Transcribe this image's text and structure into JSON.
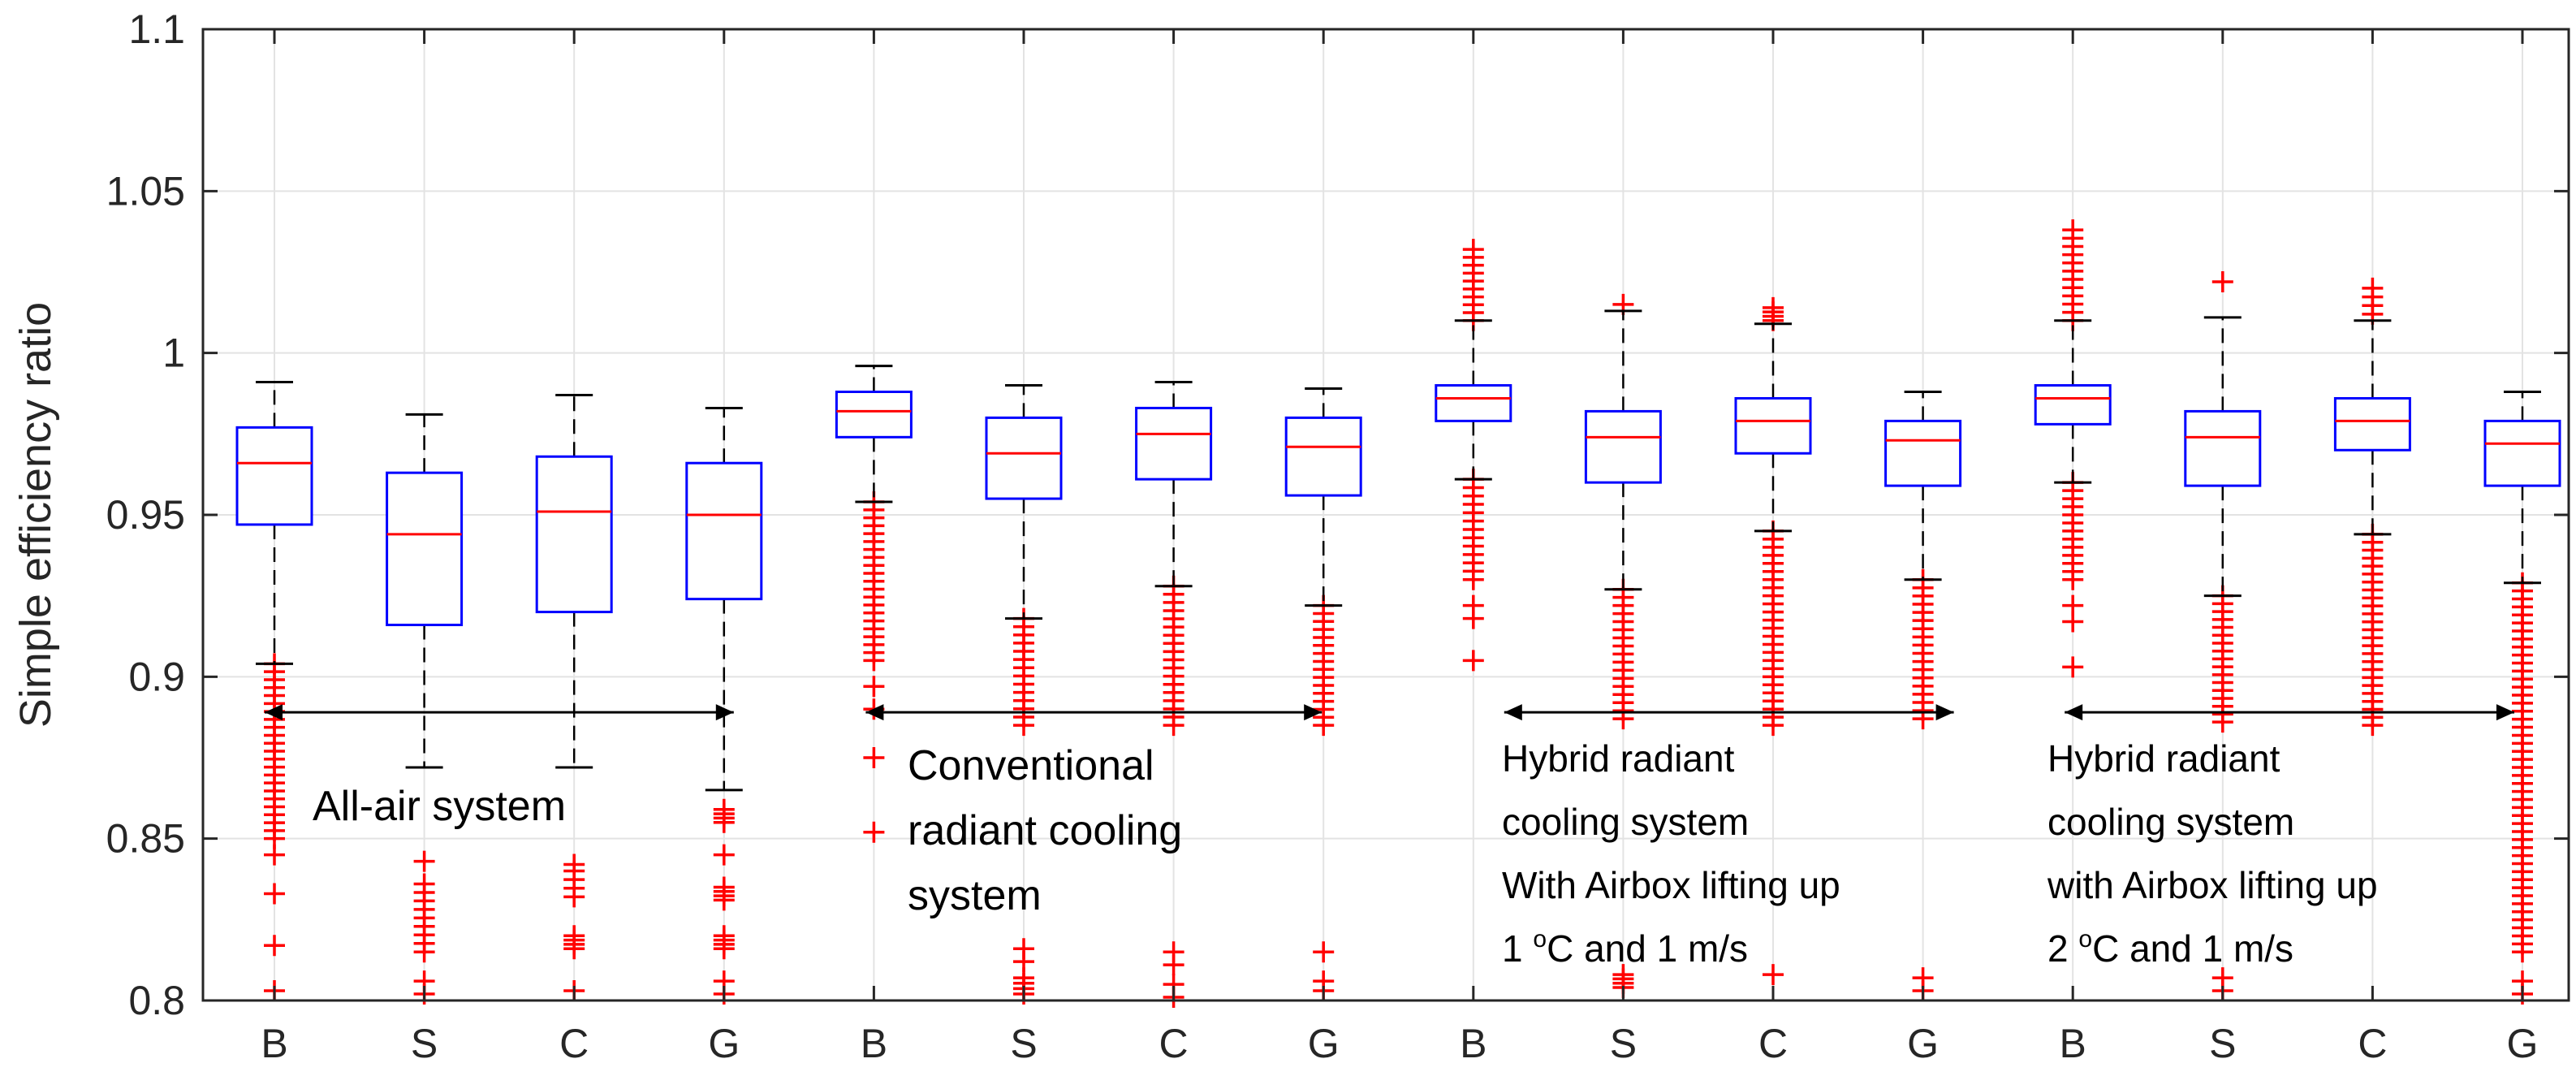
{
  "chart_data": {
    "type": "boxplot",
    "title": "",
    "xlabel": "",
    "ylabel": "Simple efficiency ratio",
    "ylim": [
      0.8,
      1.1
    ],
    "yticks": [
      "0.8",
      "0.85",
      "0.9",
      "0.95",
      "1",
      "1.05",
      "1.1"
    ],
    "grid": true,
    "categories": [
      "B",
      "S",
      "C",
      "G",
      "B",
      "S",
      "C",
      "G",
      "B",
      "S",
      "C",
      "G",
      "B",
      "S",
      "C",
      "G"
    ],
    "groups": [
      {
        "name": "All-air system",
        "lines": [
          "All-air system"
        ],
        "from": 0,
        "to": 3
      },
      {
        "name": "Conventional radiant cooling system",
        "lines": [
          "Conventional",
          "radiant cooling",
          "system"
        ],
        "from": 4,
        "to": 7
      },
      {
        "name": "Hybrid radiant cooling system With Airbox lifting up 1 °C and 1 m/s",
        "lines": [
          "Hybrid radiant",
          "cooling system",
          "With Airbox lifting up"
        ],
        "sup_line": {
          "pre": "1 ",
          "sup": "o",
          "post": "C and 1 m/s"
        },
        "from": 8,
        "to": 11
      },
      {
        "name": "Hybrid radiant cooling system with Airbox lifting up 2 °C and 1 m/s",
        "lines": [
          "Hybrid radiant",
          "cooling system",
          "with Airbox lifting up"
        ],
        "sup_line": {
          "pre": "2 ",
          "sup": "o",
          "post": "C and 1 m/s"
        },
        "from": 12,
        "to": 15
      }
    ],
    "boxes": [
      {
        "label": "B",
        "whisker_high": 0.991,
        "q3": 0.977,
        "median": 0.966,
        "q1": 0.947,
        "whisker_low": 0.904,
        "outlier_ranges": [
          [
            0.85,
            0.904
          ]
        ],
        "outliers": [
          0.845,
          0.833,
          0.817,
          0.803
        ]
      },
      {
        "label": "S",
        "whisker_high": 0.981,
        "q3": 0.963,
        "median": 0.944,
        "q1": 0.916,
        "whisker_low": 0.872,
        "outlier_ranges": [
          [
            0.815,
            0.836
          ]
        ],
        "outliers": [
          0.843,
          0.806,
          0.802
        ]
      },
      {
        "label": "C",
        "whisker_high": 0.987,
        "q3": 0.968,
        "median": 0.951,
        "q1": 0.92,
        "whisker_low": 0.872,
        "outlier_ranges": [
          [
            0.832,
            0.84
          ],
          [
            0.816,
            0.82
          ]
        ],
        "outliers": [
          0.842,
          0.803
        ]
      },
      {
        "label": "G",
        "whisker_high": 0.983,
        "q3": 0.966,
        "median": 0.95,
        "q1": 0.924,
        "whisker_low": 0.865,
        "outlier_ranges": [
          [
            0.855,
            0.859
          ],
          [
            0.831,
            0.835
          ],
          [
            0.816,
            0.82
          ]
        ],
        "outliers": [
          0.845,
          0.806,
          0.802
        ]
      },
      {
        "label": "B",
        "whisker_high": 0.996,
        "q3": 0.988,
        "median": 0.982,
        "q1": 0.974,
        "whisker_low": 0.954,
        "outlier_ranges": [
          [
            0.905,
            0.954
          ]
        ],
        "outliers": [
          0.897,
          0.89,
          0.875,
          0.852
        ]
      },
      {
        "label": "S",
        "whisker_high": 0.99,
        "q3": 0.98,
        "median": 0.969,
        "q1": 0.955,
        "whisker_low": 0.918,
        "outlier_ranges": [
          [
            0.885,
            0.918
          ],
          [
            0.802,
            0.807
          ]
        ],
        "outliers": [
          0.816,
          0.812
        ]
      },
      {
        "label": "C",
        "whisker_high": 0.991,
        "q3": 0.983,
        "median": 0.975,
        "q1": 0.961,
        "whisker_low": 0.928,
        "outlier_ranges": [
          [
            0.885,
            0.928
          ]
        ],
        "outliers": [
          0.815,
          0.811,
          0.805,
          0.801
        ]
      },
      {
        "label": "G",
        "whisker_high": 0.989,
        "q3": 0.98,
        "median": 0.971,
        "q1": 0.956,
        "whisker_low": 0.922,
        "outlier_ranges": [
          [
            0.885,
            0.922
          ]
        ],
        "outliers": [
          0.815,
          0.806,
          0.803
        ]
      },
      {
        "label": "B",
        "whisker_high": 1.01,
        "q3": 0.99,
        "median": 0.986,
        "q1": 0.979,
        "whisker_low": 0.961,
        "outlier_ranges": [
          [
            0.93,
            0.961
          ],
          [
            1.01,
            1.032
          ]
        ],
        "outliers": [
          0.922,
          0.918,
          0.905
        ]
      },
      {
        "label": "S",
        "whisker_high": 1.013,
        "q3": 0.982,
        "median": 0.974,
        "q1": 0.96,
        "whisker_low": 0.927,
        "outlier_ranges": [
          [
            0.887,
            0.927
          ],
          [
            0.804,
            0.808
          ]
        ],
        "outliers": [
          1.015
        ]
      },
      {
        "label": "C",
        "whisker_high": 1.009,
        "q3": 0.986,
        "median": 0.979,
        "q1": 0.969,
        "whisker_low": 0.945,
        "outlier_ranges": [
          [
            0.885,
            0.945
          ],
          [
            1.01,
            1.014
          ]
        ],
        "outliers": [
          0.808
        ]
      },
      {
        "label": "G",
        "whisker_high": 0.988,
        "q3": 0.979,
        "median": 0.973,
        "q1": 0.959,
        "whisker_low": 0.93,
        "outlier_ranges": [
          [
            0.887,
            0.93
          ]
        ],
        "outliers": [
          0.807,
          0.803
        ]
      },
      {
        "label": "B",
        "whisker_high": 1.01,
        "q3": 0.99,
        "median": 0.986,
        "q1": 0.978,
        "whisker_low": 0.96,
        "outlier_ranges": [
          [
            0.93,
            0.96
          ],
          [
            1.01,
            1.038
          ]
        ],
        "outliers": [
          0.922,
          0.917,
          0.903
        ]
      },
      {
        "label": "S",
        "whisker_high": 1.011,
        "q3": 0.982,
        "median": 0.974,
        "q1": 0.959,
        "whisker_low": 0.925,
        "outlier_ranges": [
          [
            0.886,
            0.925
          ]
        ],
        "outliers": [
          1.022,
          0.807,
          0.803
        ]
      },
      {
        "label": "C",
        "whisker_high": 1.01,
        "q3": 0.986,
        "median": 0.979,
        "q1": 0.97,
        "whisker_low": 0.944,
        "outlier_ranges": [
          [
            0.885,
            0.944
          ],
          [
            1.012,
            1.02
          ]
        ],
        "outliers": []
      },
      {
        "label": "G",
        "whisker_high": 0.988,
        "q3": 0.979,
        "median": 0.972,
        "q1": 0.959,
        "whisker_low": 0.929,
        "outlier_ranges": [
          [
            0.815,
            0.929
          ]
        ],
        "outliers": [
          0.806,
          0.802
        ]
      }
    ],
    "colors": {
      "box": "#0000ff",
      "median": "#ff0000",
      "outlier": "#ff0000",
      "whisker": "#000000",
      "grid": "#e3e3e3",
      "axis": "#262626"
    }
  }
}
